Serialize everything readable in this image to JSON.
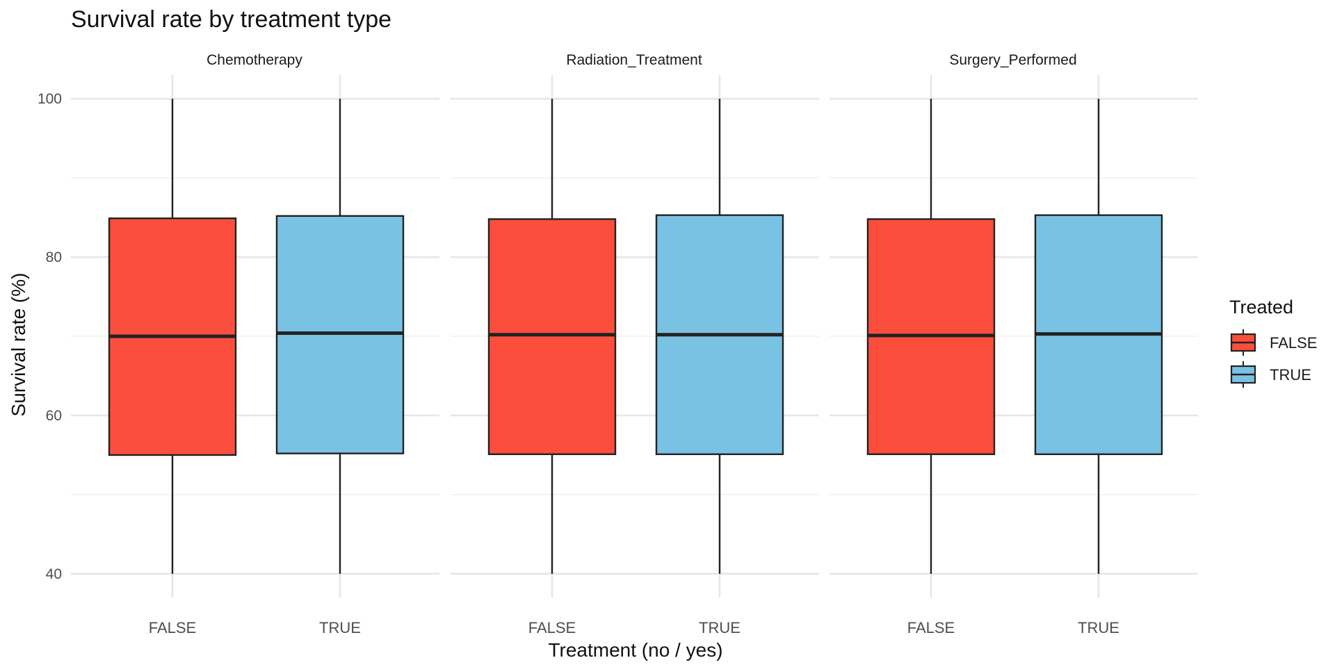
{
  "chart_data": {
    "type": "boxplot",
    "title": "Survival rate by treatment type",
    "xlabel": "Treatment (no / yes)",
    "ylabel": "Survival rate (%)",
    "ylim": [
      37,
      103
    ],
    "yticks": [
      40,
      60,
      80,
      100
    ],
    "grid": true,
    "legend": {
      "title": "Treated",
      "position": "right",
      "entries": [
        {
          "label": "FALSE",
          "color": "#FC4E3C"
        },
        {
          "label": "TRUE",
          "color": "#7AC2E4"
        }
      ]
    },
    "categories": [
      "FALSE",
      "TRUE"
    ],
    "facets": [
      {
        "name": "Chemotherapy",
        "boxes": [
          {
            "x": "FALSE",
            "min": 40,
            "q1": 55.0,
            "median": 70.0,
            "q3": 84.9,
            "max": 100
          },
          {
            "x": "TRUE",
            "min": 40,
            "q1": 55.2,
            "median": 70.4,
            "q3": 85.2,
            "max": 100
          }
        ]
      },
      {
        "name": "Radiation_Treatment",
        "boxes": [
          {
            "x": "FALSE",
            "min": 40,
            "q1": 55.1,
            "median": 70.2,
            "q3": 84.8,
            "max": 100
          },
          {
            "x": "TRUE",
            "min": 40,
            "q1": 55.1,
            "median": 70.2,
            "q3": 85.3,
            "max": 100
          }
        ]
      },
      {
        "name": "Surgery_Performed",
        "boxes": [
          {
            "x": "FALSE",
            "min": 40,
            "q1": 55.1,
            "median": 70.1,
            "q3": 84.8,
            "max": 100
          },
          {
            "x": "TRUE",
            "min": 40,
            "q1": 55.1,
            "median": 70.3,
            "q3": 85.3,
            "max": 100
          }
        ]
      }
    ]
  }
}
